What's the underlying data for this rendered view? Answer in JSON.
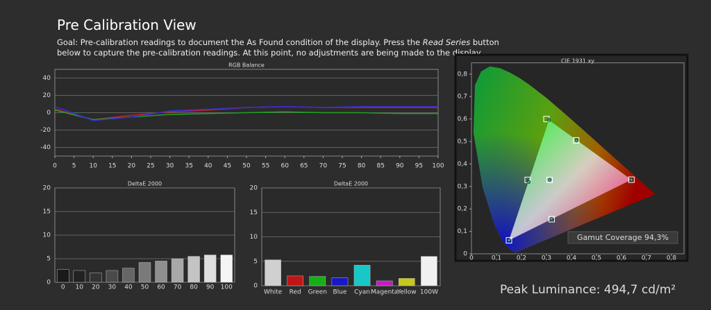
{
  "header": {
    "title": "Pre Calibration View",
    "goal": [
      "Goal: Pre-calibration readings to document the As Found condition of the display. Press the ",
      "Read Series",
      " button below to capture the pre-calibration readings. At this point, no adjustments are being made to the display."
    ]
  },
  "footer": {
    "peak_luminance": "Peak Luminance: 494,7 cd/m²"
  },
  "chart_data": [
    {
      "type": "line",
      "title": "RGB Balance",
      "x": [
        0,
        10,
        20,
        30,
        40,
        50,
        60,
        70,
        80,
        90,
        100
      ],
      "series": [
        {
          "color": "#d02020",
          "values": [
            4,
            -8,
            -3,
            1,
            3,
            6,
            7,
            6,
            6,
            6,
            6
          ]
        },
        {
          "color": "#20a020",
          "values": [
            3,
            -8,
            -5,
            -2,
            -1,
            0,
            1,
            0,
            0,
            -1,
            -1
          ]
        },
        {
          "color": "#3030e0",
          "values": [
            7,
            -9,
            -5,
            2,
            4,
            6,
            7,
            6,
            7,
            7,
            7
          ]
        }
      ],
      "xlim": [
        0,
        100
      ],
      "xticks": [
        0,
        5,
        10,
        15,
        20,
        25,
        30,
        35,
        40,
        45,
        50,
        55,
        60,
        65,
        70,
        75,
        80,
        85,
        90,
        95,
        100
      ],
      "ylim": [
        -50,
        50
      ],
      "yticks": [
        -40,
        -20,
        0,
        20,
        40
      ],
      "grid": true
    },
    {
      "type": "bar",
      "title": "DeltaE 2000",
      "categories": [
        "0",
        "10",
        "20",
        "30",
        "40",
        "50",
        "60",
        "70",
        "80",
        "90",
        "100"
      ],
      "values": [
        2.7,
        2.5,
        2,
        2.5,
        3,
        4.2,
        4.5,
        5,
        5.5,
        5.8,
        5.8
      ],
      "colors": [
        "#1a1a1a",
        "#222222",
        "#333333",
        "#4a4a4a",
        "#666666",
        "#7a7a7a",
        "#8f8f8f",
        "#a8a8a8",
        "#c4c4c4",
        "#dedede",
        "#f4f4f4"
      ],
      "ylim": [
        0,
        20
      ],
      "yticks": [
        0,
        5,
        10,
        15,
        20
      ],
      "grid": true
    },
    {
      "type": "bar",
      "title": "DeltaE 2000",
      "categories": [
        "White",
        "Red",
        "Green",
        "Blue",
        "Cyan",
        "Magenta",
        "Yellow",
        "100W"
      ],
      "values": [
        5.3,
        2,
        1.9,
        1.6,
        4.2,
        1,
        1.5,
        6
      ],
      "colors": [
        "#d0d0d0",
        "#c01515",
        "#16b016",
        "#1818c8",
        "#18c8c8",
        "#c818c8",
        "#c8c818",
        "#f0f0f0"
      ],
      "ylim": [
        0,
        20
      ],
      "yticks": [
        0,
        5,
        10,
        15,
        20
      ],
      "grid": true
    },
    {
      "type": "scatter",
      "title": "CIE 1931 xy",
      "series": [
        {
          "marker": "square",
          "x": [
            0.64,
            0.3,
            0.15,
            0.3127,
            0.225,
            0.321,
            0.419
          ],
          "y": [
            0.33,
            0.6,
            0.06,
            0.329,
            0.329,
            0.154,
            0.505
          ]
        },
        {
          "marker": "circle",
          "x": [
            0.64,
            0.31,
            0.15,
            0.313,
            0.23,
            0.32,
            0.42
          ],
          "y": [
            0.33,
            0.595,
            0.06,
            0.33,
            0.32,
            0.155,
            0.505
          ]
        }
      ],
      "xlim": [
        0,
        0.85
      ],
      "xticks": [
        0,
        {
          "value": 0.1,
          "label": "0,1"
        },
        {
          "value": 0.2,
          "label": "0,2"
        },
        {
          "value": 0.3,
          "label": "0,3"
        },
        {
          "value": 0.4,
          "label": "0,4"
        },
        {
          "value": 0.5,
          "label": "0,5"
        },
        {
          "value": 0.6,
          "label": "0,6"
        },
        {
          "value": 0.7,
          "label": "0,7"
        },
        {
          "value": 0.8,
          "label": "0,8"
        }
      ],
      "ylim": [
        0,
        0.85
      ],
      "yticks": [
        0,
        {
          "value": 0.1,
          "label": "0,1"
        },
        {
          "value": 0.2,
          "label": "0,2"
        },
        {
          "value": 0.3,
          "label": "0,3"
        },
        {
          "value": 0.4,
          "label": "0,4"
        },
        {
          "value": 0.5,
          "label": "0,5"
        },
        {
          "value": 0.6,
          "label": "0,6"
        },
        {
          "value": 0.7,
          "label": "0,7"
        },
        {
          "value": 0.8,
          "label": "0,8"
        }
      ],
      "grid": false,
      "annotation": "Gamut Coverage 94,3%"
    }
  ]
}
